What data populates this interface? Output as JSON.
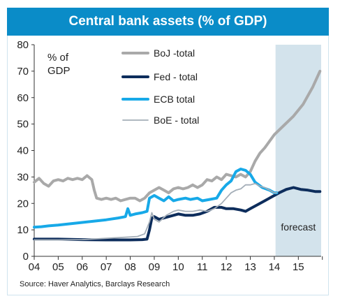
{
  "header": {
    "title": "Central bank assets (% of GDP)"
  },
  "footer": {
    "source": "Source: Haver Analytics, Barclays Research"
  },
  "chart_data": {
    "type": "line",
    "title": "Central bank assets (% of GDP)",
    "ylabel": "% of GDP",
    "xlabel": "",
    "x_ticks": [
      "04",
      "05",
      "06",
      "07",
      "08",
      "09",
      "10",
      "11",
      "12",
      "13",
      "14",
      "15"
    ],
    "xlim": [
      2004.0,
      2015.95
    ],
    "ylim": [
      0,
      80
    ],
    "y_ticks": [
      0,
      10,
      20,
      30,
      40,
      50,
      60,
      70,
      80
    ],
    "grid": false,
    "legend_position": "top-center",
    "forecast_region": {
      "x_start": 2014.05,
      "x_end": 2015.95,
      "label": "forecast",
      "color": "#d3e3ec"
    },
    "series": [
      {
        "name": "BoJ -total",
        "color": "#a9a9a9",
        "width": 4,
        "points": [
          [
            2004.0,
            28
          ],
          [
            2004.2,
            29.5
          ],
          [
            2004.4,
            27.5
          ],
          [
            2004.6,
            26.5
          ],
          [
            2004.8,
            28.5
          ],
          [
            2005.0,
            29
          ],
          [
            2005.2,
            28.5
          ],
          [
            2005.4,
            29.5
          ],
          [
            2005.6,
            29
          ],
          [
            2005.8,
            29.5
          ],
          [
            2006.0,
            29
          ],
          [
            2006.2,
            30.5
          ],
          [
            2006.4,
            29
          ],
          [
            2006.5,
            25
          ],
          [
            2006.6,
            22
          ],
          [
            2006.8,
            21.5
          ],
          [
            2007.0,
            22
          ],
          [
            2007.2,
            21.5
          ],
          [
            2007.4,
            22
          ],
          [
            2007.6,
            21
          ],
          [
            2007.8,
            21.5
          ],
          [
            2008.0,
            22
          ],
          [
            2008.2,
            22
          ],
          [
            2008.4,
            21
          ],
          [
            2008.6,
            22
          ],
          [
            2008.8,
            24
          ],
          [
            2009.0,
            25
          ],
          [
            2009.2,
            26
          ],
          [
            2009.4,
            25
          ],
          [
            2009.6,
            24
          ],
          [
            2009.8,
            25.5
          ],
          [
            2010.0,
            26
          ],
          [
            2010.2,
            25.5
          ],
          [
            2010.4,
            26
          ],
          [
            2010.6,
            27
          ],
          [
            2010.8,
            26
          ],
          [
            2011.0,
            27
          ],
          [
            2011.2,
            29
          ],
          [
            2011.4,
            28.5
          ],
          [
            2011.6,
            30
          ],
          [
            2011.8,
            29
          ],
          [
            2012.0,
            31
          ],
          [
            2012.2,
            30.5
          ],
          [
            2012.4,
            30
          ],
          [
            2012.6,
            31
          ],
          [
            2012.8,
            30
          ],
          [
            2013.0,
            32
          ],
          [
            2013.2,
            36
          ],
          [
            2013.4,
            39
          ],
          [
            2013.6,
            41
          ],
          [
            2013.8,
            43.5
          ],
          [
            2014.0,
            46
          ],
          [
            2014.4,
            49.5
          ],
          [
            2014.8,
            53
          ],
          [
            2015.2,
            57.5
          ],
          [
            2015.6,
            64
          ],
          [
            2015.9,
            70
          ]
        ]
      },
      {
        "name": "Fed - total",
        "color": "#0d2d5c",
        "width": 4,
        "points": [
          [
            2004.0,
            6.5
          ],
          [
            2005.0,
            6.5
          ],
          [
            2006.0,
            6.3
          ],
          [
            2007.0,
            6.2
          ],
          [
            2008.0,
            6.2
          ],
          [
            2008.5,
            6.3
          ],
          [
            2008.7,
            6.5
          ],
          [
            2008.8,
            10
          ],
          [
            2008.9,
            14.5
          ],
          [
            2009.0,
            15
          ],
          [
            2009.2,
            14
          ],
          [
            2009.4,
            14.5
          ],
          [
            2009.6,
            15
          ],
          [
            2009.8,
            15.5
          ],
          [
            2010.0,
            16
          ],
          [
            2010.3,
            15.5
          ],
          [
            2010.6,
            15.5
          ],
          [
            2010.9,
            16
          ],
          [
            2011.2,
            17
          ],
          [
            2011.5,
            18.5
          ],
          [
            2011.8,
            18.5
          ],
          [
            2012.0,
            18
          ],
          [
            2012.3,
            18
          ],
          [
            2012.6,
            17.5
          ],
          [
            2012.8,
            17
          ],
          [
            2013.0,
            18
          ],
          [
            2013.3,
            19.5
          ],
          [
            2013.6,
            21
          ],
          [
            2013.9,
            22.5
          ],
          [
            2014.2,
            24
          ],
          [
            2014.5,
            25.3
          ],
          [
            2014.8,
            26
          ],
          [
            2015.1,
            25.3
          ],
          [
            2015.4,
            25
          ],
          [
            2015.7,
            24.5
          ],
          [
            2015.9,
            24.5
          ]
        ]
      },
      {
        "name": "ECB total",
        "color": "#17a9e8",
        "width": 4,
        "points": [
          [
            2004.0,
            11
          ],
          [
            2004.3,
            11.2
          ],
          [
            2004.6,
            11.5
          ],
          [
            2005.0,
            11.8
          ],
          [
            2005.5,
            12.3
          ],
          [
            2006.0,
            12.8
          ],
          [
            2006.5,
            13.3
          ],
          [
            2007.0,
            13.8
          ],
          [
            2007.5,
            14.5
          ],
          [
            2007.8,
            15
          ],
          [
            2007.9,
            18
          ],
          [
            2008.0,
            15.5
          ],
          [
            2008.2,
            16
          ],
          [
            2008.5,
            16.5
          ],
          [
            2008.7,
            17
          ],
          [
            2008.8,
            22
          ],
          [
            2009.0,
            23
          ],
          [
            2009.2,
            22
          ],
          [
            2009.4,
            21
          ],
          [
            2009.6,
            22.5
          ],
          [
            2009.8,
            21
          ],
          [
            2010.0,
            21.5
          ],
          [
            2010.3,
            22
          ],
          [
            2010.5,
            21.5
          ],
          [
            2010.8,
            22
          ],
          [
            2011.0,
            21
          ],
          [
            2011.3,
            21.5
          ],
          [
            2011.6,
            22
          ],
          [
            2011.8,
            25
          ],
          [
            2012.0,
            27
          ],
          [
            2012.2,
            28.5
          ],
          [
            2012.4,
            32
          ],
          [
            2012.6,
            33
          ],
          [
            2012.8,
            32.5
          ],
          [
            2013.0,
            31
          ],
          [
            2013.2,
            28
          ],
          [
            2013.5,
            26
          ],
          [
            2013.8,
            25
          ],
          [
            2014.0,
            24
          ],
          [
            2014.1,
            24
          ]
        ]
      },
      {
        "name": "BoE - total",
        "color": "#a4aeb8",
        "width": 1.8,
        "points": [
          [
            2004.0,
            6.2
          ],
          [
            2005.0,
            6.2
          ],
          [
            2006.0,
            6.3
          ],
          [
            2007.0,
            6.8
          ],
          [
            2007.8,
            7.2
          ],
          [
            2008.3,
            7.5
          ],
          [
            2008.6,
            8.5
          ],
          [
            2008.8,
            13
          ],
          [
            2008.9,
            16.5
          ],
          [
            2009.0,
            14
          ],
          [
            2009.2,
            13
          ],
          [
            2009.5,
            15.5
          ],
          [
            2009.8,
            17
          ],
          [
            2010.0,
            17.5
          ],
          [
            2010.3,
            17
          ],
          [
            2010.6,
            17
          ],
          [
            2010.9,
            17.5
          ],
          [
            2011.2,
            17
          ],
          [
            2011.5,
            18
          ],
          [
            2011.8,
            20
          ],
          [
            2012.0,
            22
          ],
          [
            2012.2,
            24
          ],
          [
            2012.4,
            25
          ],
          [
            2012.6,
            25.5
          ],
          [
            2012.8,
            27
          ],
          [
            2013.0,
            27
          ],
          [
            2013.2,
            27.5
          ],
          [
            2013.4,
            26.5
          ],
          [
            2013.6,
            26
          ],
          [
            2013.8,
            25
          ],
          [
            2014.0,
            24
          ],
          [
            2014.1,
            24
          ]
        ]
      }
    ]
  }
}
